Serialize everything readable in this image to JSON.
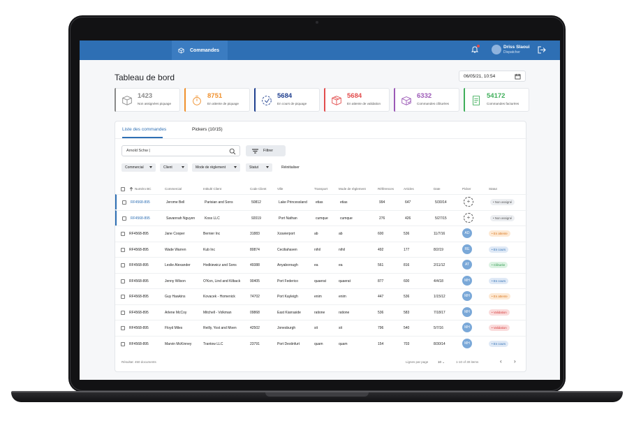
{
  "topbar": {
    "nav_label": "Commandes",
    "user_name": "Driss Slaoui",
    "user_role": "Dispatcher",
    "accent": "#2e6fb4"
  },
  "header": {
    "title": "Tableau de bord",
    "datetime": "06/05/21, 10:54"
  },
  "stats": [
    {
      "value": "1423",
      "label": "Non assignées piquage",
      "color": "#8a8a8a",
      "icon": "box-icon"
    },
    {
      "value": "8751",
      "label": "En attente de piquage",
      "color": "#f0902c",
      "icon": "timer-icon"
    },
    {
      "value": "5684",
      "label": "En cours de piquage",
      "color": "#1f3f8f",
      "icon": "progress-icon"
    },
    {
      "value": "5684",
      "label": "En attente de validation",
      "color": "#e24c4c",
      "icon": "package-icon"
    },
    {
      "value": "6332",
      "label": "Commandes clôturées",
      "color": "#9b59b6",
      "icon": "closed-box-icon"
    },
    {
      "value": "54172",
      "label": "Commandes facturées",
      "color": "#3fae5a",
      "icon": "invoice-icon"
    }
  ],
  "tabs": [
    {
      "label": "Liste des commandes"
    },
    {
      "label": "Pickers (10/15)"
    }
  ],
  "search": {
    "value": "Arnold Schw |"
  },
  "filter_label": "Filtrer",
  "chips": [
    "Commercial",
    "Client",
    "Mode de règlement",
    "Statut"
  ],
  "reset_label": "Réinitialiser",
  "columns": [
    "Numéro BC",
    "Commercial",
    "Intitulé Client",
    "Code Client",
    "Ville",
    "Transport",
    "Mode de règlement",
    "Références",
    "Articles",
    "Date",
    "Picker",
    "Statut"
  ],
  "rows": [
    {
      "bc": "RF4568-895",
      "commercial": "Jerome Bell",
      "client": "Parisian and Sons",
      "code": "50812",
      "ville": "Lake Princessland",
      "transport": "etias",
      "mode": "etias",
      "refs": "994",
      "articles": "647",
      "date": "5/30/14",
      "picker": "",
      "status": "Non assigné",
      "status_kind": "grey"
    },
    {
      "bc": "RF4568-895",
      "commercial": "Savannah Nguyen",
      "client": "Koss LLC",
      "code": "92019",
      "ville": "Port Nathan",
      "transport": "cumque",
      "mode": "cumque",
      "refs": "276",
      "articles": "426",
      "date": "5/27/15",
      "picker": "",
      "status": "Non assigné",
      "status_kind": "grey"
    },
    {
      "bc": "RF4568-895",
      "commercial": "Jane Cooper",
      "client": "Bernier Inc",
      "code": "31883",
      "ville": "Xzavierport",
      "transport": "ab",
      "mode": "ab",
      "refs": "600",
      "articles": "536",
      "date": "11/7/16",
      "picker": "AD",
      "status": "En attente",
      "status_kind": "orange"
    },
    {
      "bc": "RF4568-895",
      "commercial": "Wade Warren",
      "client": "Kub Inc",
      "code": "80874",
      "ville": "Ceciliahaven",
      "transport": "nihil",
      "mode": "nihil",
      "refs": "492",
      "articles": "177",
      "date": "8/2/19",
      "picker": "RE",
      "status": "En cours",
      "status_kind": "blue"
    },
    {
      "bc": "RF4568-895",
      "commercial": "Leslie Alexander",
      "client": "Hodkiewicz and Sons",
      "code": "49388",
      "ville": "Anyaborough",
      "transport": "ea",
      "mode": "ea",
      "refs": "561",
      "articles": "816",
      "date": "2/11/12",
      "picker": "AT",
      "status": "Clôturée",
      "status_kind": "green"
    },
    {
      "bc": "RF4568-895",
      "commercial": "Jenny Wilson",
      "client": "O'Kon, Lind and Kilback",
      "code": "90405",
      "ville": "Port Federico",
      "transport": "quaerat",
      "mode": "quaerat",
      "refs": "877",
      "articles": "600",
      "date": "4/4/18",
      "picker": "MH",
      "status": "En cours",
      "status_kind": "blue"
    },
    {
      "bc": "RF4568-895",
      "commercial": "Guy Hawkins",
      "client": "Kovacek - Homenick",
      "code": "74702",
      "ville": "Port Kayleigh",
      "transport": "enim",
      "mode": "enim",
      "refs": "447",
      "articles": "536",
      "date": "1/15/12",
      "picker": "MH",
      "status": "En attente",
      "status_kind": "orange"
    },
    {
      "bc": "RF4568-895",
      "commercial": "Arlene McCoy",
      "client": "Mitchell - Volkman",
      "code": "09868",
      "ville": "East Kiarraside",
      "transport": "ratione",
      "mode": "ratione",
      "refs": "536",
      "articles": "583",
      "date": "7/18/17",
      "picker": "MH",
      "status": "Validation",
      "status_kind": "red"
    },
    {
      "bc": "RF4568-895",
      "commercial": "Floyd Miles",
      "client": "Reilly, Yost and Moen",
      "code": "42502",
      "ville": "Jonesburgh",
      "transport": "sit",
      "mode": "sit",
      "refs": "796",
      "articles": "540",
      "date": "5/7/16",
      "picker": "MH",
      "status": "Validation",
      "status_kind": "red"
    },
    {
      "bc": "RF4568-895",
      "commercial": "Marvin McKinney",
      "client": "Trantow LLC",
      "code": "23791",
      "ville": "Port Destinfurt",
      "transport": "quam",
      "mode": "quam",
      "refs": "154",
      "articles": "703",
      "date": "8/30/14",
      "picker": "MH",
      "status": "En cours",
      "status_kind": "blue"
    }
  ],
  "footer": {
    "result": "Résultat: 450 documents",
    "rows_per_page_label": "Lignes par page",
    "rows_per_page": "10",
    "range": "1-10 of 30 items"
  }
}
